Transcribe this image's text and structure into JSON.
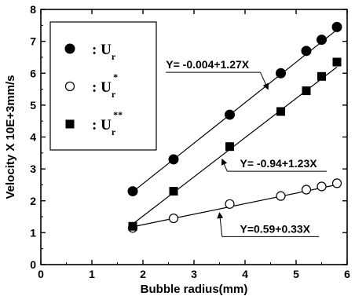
{
  "chart_data": {
    "type": "scatter",
    "xlabel": "Bubble radius(mm)",
    "ylabel": "Velocity X 10E+3mm/s",
    "xlim": [
      0,
      6
    ],
    "ylim": [
      0,
      8
    ],
    "x_ticks": [
      0,
      1,
      2,
      3,
      4,
      5,
      6
    ],
    "y_ticks": [
      0,
      1,
      2,
      3,
      4,
      5,
      6,
      7,
      8
    ],
    "legend_position": "top-left",
    "series": [
      {
        "name": "U_r",
        "marker": "filled-circle",
        "points": [
          {
            "x": 1.8,
            "y": 2.3
          },
          {
            "x": 2.6,
            "y": 3.3
          },
          {
            "x": 3.7,
            "y": 4.7
          },
          {
            "x": 4.7,
            "y": 6.0
          },
          {
            "x": 5.2,
            "y": 6.7
          },
          {
            "x": 5.5,
            "y": 7.05
          },
          {
            "x": 5.8,
            "y": 7.45
          }
        ],
        "fit": {
          "intercept": -0.004,
          "slope": 1.27,
          "label": "Y= -0.004+1.27X"
        }
      },
      {
        "name": "U_r*",
        "marker": "open-circle",
        "points": [
          {
            "x": 1.8,
            "y": 1.15
          },
          {
            "x": 2.6,
            "y": 1.45
          },
          {
            "x": 3.7,
            "y": 1.9
          },
          {
            "x": 4.7,
            "y": 2.15
          },
          {
            "x": 5.2,
            "y": 2.35
          },
          {
            "x": 5.5,
            "y": 2.45
          },
          {
            "x": 5.8,
            "y": 2.55
          }
        ],
        "fit": {
          "intercept": 0.59,
          "slope": 0.33,
          "label": "Y=0.59+0.33X"
        }
      },
      {
        "name": "U_r**",
        "marker": "filled-square",
        "points": [
          {
            "x": 1.8,
            "y": 1.2
          },
          {
            "x": 2.6,
            "y": 2.3
          },
          {
            "x": 3.7,
            "y": 3.7
          },
          {
            "x": 4.7,
            "y": 4.8
          },
          {
            "x": 5.2,
            "y": 5.45
          },
          {
            "x": 5.5,
            "y": 5.9
          },
          {
            "x": 5.8,
            "y": 6.35
          }
        ],
        "fit": {
          "intercept": -0.94,
          "slope": 1.23,
          "label": "Y= -0.94+1.23X"
        }
      }
    ],
    "legend": [
      {
        "symbol": "filled-circle",
        "prefix": ": U",
        "sub": "r",
        "sup": ""
      },
      {
        "symbol": "open-circle",
        "prefix": ": U",
        "sub": "r",
        "sup": "*"
      },
      {
        "symbol": "filled-square",
        "prefix": ": U",
        "sub": "r",
        "sup": "**"
      }
    ]
  }
}
